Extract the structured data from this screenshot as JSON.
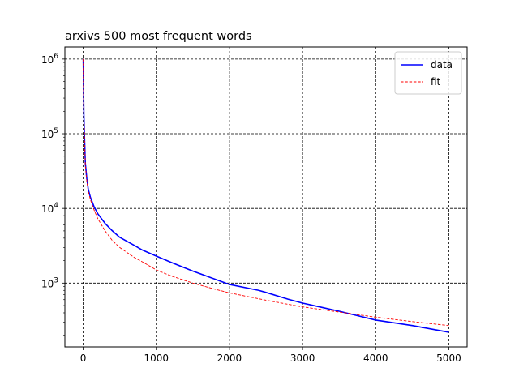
{
  "chart_data": {
    "type": "line",
    "title": "arxivs 500 most frequent words",
    "xlabel": "",
    "ylabel": "",
    "xscale": "linear",
    "yscale": "log",
    "xlim": [
      -250,
      5250
    ],
    "ylim": [
      140,
      1450000
    ],
    "xticks": [
      0,
      1000,
      2000,
      3000,
      4000,
      5000
    ],
    "xtick_labels": [
      "0",
      "1000",
      "2000",
      "3000",
      "4000",
      "5000"
    ],
    "yticks": [
      {
        "value": 1000,
        "base": "10",
        "exp": "3"
      },
      {
        "value": 10000,
        "base": "10",
        "exp": "4"
      },
      {
        "value": 100000,
        "base": "10",
        "exp": "5"
      },
      {
        "value": 1000000,
        "base": "10",
        "exp": "6"
      }
    ],
    "grid": true,
    "legend_position": "top-right",
    "series": [
      {
        "name": "data",
        "color": "#0000ff",
        "style": "solid",
        "x": [
          1,
          10,
          20,
          30,
          50,
          70,
          100,
          150,
          200,
          300,
          400,
          500,
          700,
          800,
          1000,
          1200,
          1500,
          1800,
          2000,
          2400,
          2500,
          2800,
          3000,
          3500,
          4000,
          4500,
          5000
        ],
        "y": [
          1000000,
          180000,
          80000,
          40000,
          25000,
          18000,
          14000,
          10500,
          8500,
          6300,
          5000,
          4100,
          3200,
          2800,
          2300,
          1900,
          1450,
          1130,
          960,
          800,
          750,
          610,
          540,
          420,
          320,
          270,
          220
        ]
      },
      {
        "name": "fit",
        "color": "#ff0000",
        "style": "dashed",
        "x": [
          1,
          10,
          20,
          30,
          50,
          70,
          100,
          150,
          200,
          300,
          400,
          500,
          700,
          800,
          1000,
          1200,
          1500,
          1800,
          2000,
          2500,
          3000,
          3500,
          4000,
          4500,
          5000
        ],
        "y": [
          1000000,
          170000,
          75000,
          38000,
          23000,
          17000,
          13000,
          9500,
          7300,
          5000,
          3700,
          3000,
          2200,
          1950,
          1500,
          1250,
          1000,
          830,
          740,
          590,
          480,
          410,
          350,
          305,
          270
        ]
      }
    ]
  }
}
